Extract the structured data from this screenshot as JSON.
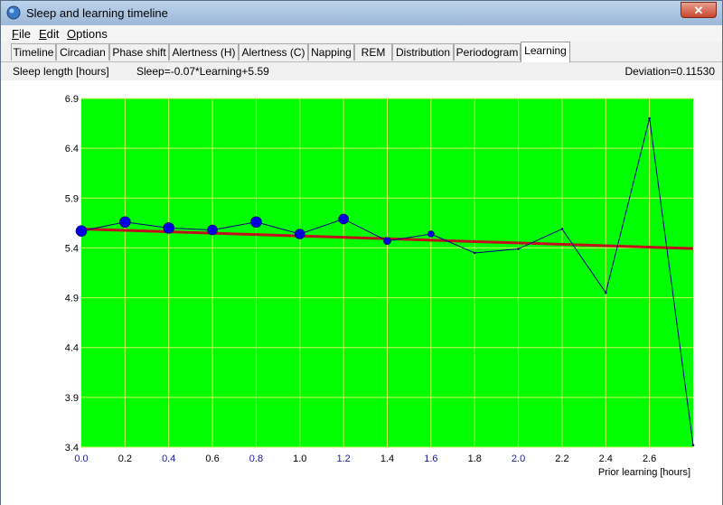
{
  "window": {
    "title": "Sleep and learning timeline",
    "close_label": "✕"
  },
  "menu": [
    {
      "label": "File",
      "u": "F",
      "rest": "ile"
    },
    {
      "label": "Edit",
      "u": "E",
      "rest": "dit"
    },
    {
      "label": "Options",
      "u": "O",
      "rest": "ptions"
    }
  ],
  "tabs": [
    "Timeline",
    "Circadian",
    "Phase shift",
    "Alertness (H)",
    "Alertness (C)",
    "Napping",
    "REM",
    "Distribution",
    "Periodogram",
    "Learning"
  ],
  "active_tab": "Learning",
  "info": {
    "ylabel": "Sleep length [hours]",
    "equation": "Sleep=-0.07*Learning+5.59",
    "deviation": "Deviation=0.11530"
  },
  "colors": {
    "plot_bg": "#00ff00",
    "grid": "#d8f060",
    "series": "#000080",
    "marker": "#0000e0",
    "trend": "#c0101a",
    "tick_blue": "#1a1aa0"
  },
  "chart_data": {
    "type": "line",
    "title": "",
    "xlabel": "Prior learning [hours]",
    "ylabel": "Sleep length [hours]",
    "xlim": [
      0,
      2.8
    ],
    "ylim": [
      3.4,
      6.9
    ],
    "x_ticks": [
      "0.0",
      "0.2",
      "0.4",
      "0.6",
      "0.8",
      "1.0",
      "1.2",
      "1.4",
      "1.6",
      "1.8",
      "2.0",
      "2.2",
      "2.4",
      "2.6"
    ],
    "y_ticks": [
      "6.9",
      "6.4",
      "5.9",
      "5.4",
      "4.9",
      "4.4",
      "3.9",
      "3.4"
    ],
    "grid": true,
    "series": [
      {
        "points": [
          {
            "x": 0.0,
            "y": 5.57,
            "size": 6
          },
          {
            "x": 0.2,
            "y": 5.66,
            "size": 6
          },
          {
            "x": 0.4,
            "y": 5.6,
            "size": 6
          },
          {
            "x": 0.6,
            "y": 5.58,
            "size": 5.5
          },
          {
            "x": 0.8,
            "y": 5.66,
            "size": 6
          },
          {
            "x": 1.0,
            "y": 5.54,
            "size": 5.5
          },
          {
            "x": 1.2,
            "y": 5.69,
            "size": 5.5
          },
          {
            "x": 1.4,
            "y": 5.47,
            "size": 4
          },
          {
            "x": 1.6,
            "y": 5.54,
            "size": 3.5
          },
          {
            "x": 1.8,
            "y": 5.35,
            "size": 1
          },
          {
            "x": 2.0,
            "y": 5.39,
            "size": 1
          },
          {
            "x": 2.2,
            "y": 5.59,
            "size": 1
          },
          {
            "x": 2.4,
            "y": 4.95,
            "size": 1
          },
          {
            "x": 2.6,
            "y": 6.7,
            "size": 1
          },
          {
            "x": 2.8,
            "y": 3.42,
            "size": 1
          }
        ]
      }
    ],
    "trend": {
      "slope": -0.07,
      "intercept": 5.59
    }
  }
}
